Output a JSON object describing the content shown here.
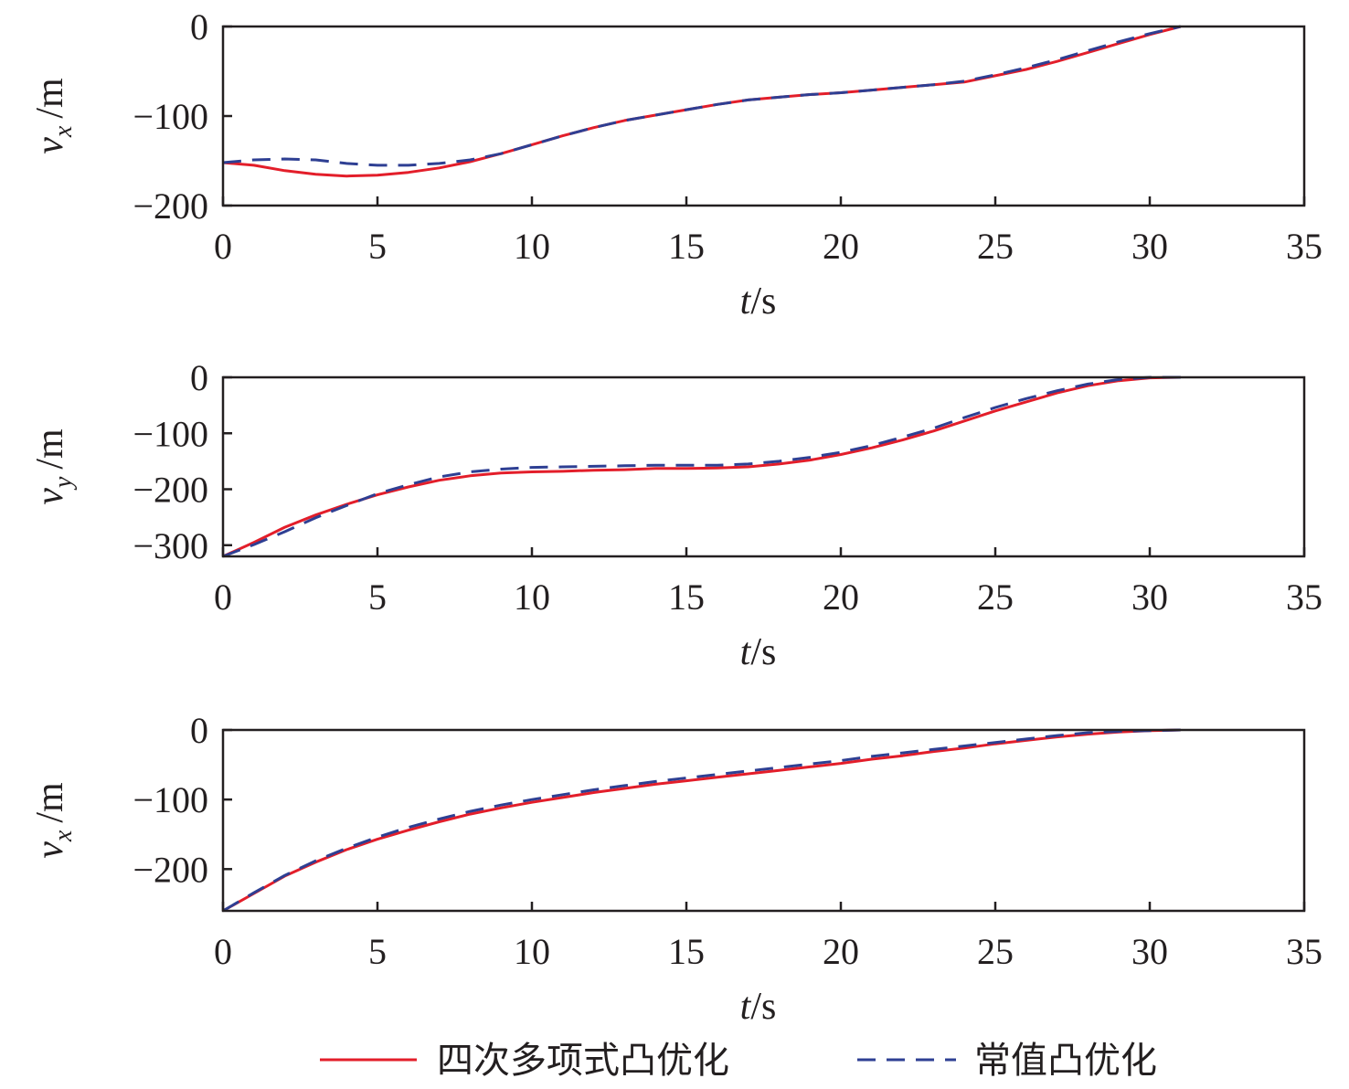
{
  "colors": {
    "series_solid": "#e31e2a",
    "series_dashed": "#2e3f93",
    "axis": "#231f20"
  },
  "legend": [
    {
      "name": "四次多项式凸优化",
      "style": "solid"
    },
    {
      "name": "常值凸优化",
      "style": "dashed"
    }
  ],
  "chart_data": [
    {
      "type": "line",
      "ylabel_var": "v",
      "ylabel_sub": "x",
      "ylabel_unit": "/m",
      "xlabel_var": "t",
      "xlabel_unit": "/s",
      "xlim": [
        0,
        35
      ],
      "ylim": [
        -200,
        0
      ],
      "xticks": [
        0,
        5,
        10,
        15,
        20,
        25,
        30,
        35
      ],
      "yticks": [
        0,
        -100,
        -200
      ],
      "ytick_labels": [
        "0",
        "−100",
        "−200"
      ],
      "grid": false,
      "series": [
        {
          "name": "四次多项式凸优化",
          "style": "solid",
          "x": [
            0,
            1,
            2,
            3,
            4,
            5,
            6,
            7,
            8,
            9,
            10,
            11,
            12,
            13,
            14,
            15,
            16,
            17,
            18,
            19,
            20,
            21,
            22,
            23,
            24,
            25,
            26,
            27,
            28,
            29,
            30,
            31
          ],
          "y": [
            -152,
            -155,
            -161,
            -165,
            -167,
            -166,
            -163,
            -158,
            -151,
            -142,
            -132,
            -122,
            -113,
            -105,
            -99,
            -93,
            -87,
            -82,
            -79,
            -76,
            -74,
            -71,
            -68,
            -65,
            -62,
            -55,
            -48,
            -39,
            -29,
            -19,
            -9,
            0
          ]
        },
        {
          "name": "常值凸优化",
          "style": "dashed",
          "x": [
            0,
            1,
            2,
            3,
            4,
            5,
            6,
            7,
            8,
            9,
            10,
            11,
            12,
            13,
            14,
            15,
            16,
            17,
            18,
            19,
            20,
            21,
            22,
            23,
            24,
            25,
            26,
            27,
            28,
            29,
            30,
            31
          ],
          "y": [
            -152,
            -149,
            -148,
            -149,
            -153,
            -155,
            -155,
            -153,
            -149,
            -142,
            -132,
            -122,
            -113,
            -105,
            -99,
            -93,
            -87,
            -82,
            -79,
            -76,
            -74,
            -71,
            -68,
            -65,
            -61,
            -54,
            -46,
            -37,
            -27,
            -17,
            -8,
            0
          ]
        }
      ]
    },
    {
      "type": "line",
      "ylabel_var": "v",
      "ylabel_sub": "y",
      "ylabel_unit": "/m",
      "xlabel_var": "t",
      "xlabel_unit": "/s",
      "xlim": [
        0,
        35
      ],
      "ylim": [
        -320,
        0
      ],
      "xticks": [
        0,
        5,
        10,
        15,
        20,
        25,
        30,
        35
      ],
      "yticks": [
        0,
        -100,
        -200,
        -300
      ],
      "ytick_labels": [
        "0",
        "−100",
        "−200",
        "−300"
      ],
      "grid": false,
      "series": [
        {
          "name": "四次多项式凸优化",
          "style": "solid",
          "x": [
            0,
            1,
            2,
            3,
            4,
            5,
            6,
            7,
            8,
            9,
            10,
            11,
            12,
            13,
            14,
            15,
            16,
            17,
            18,
            19,
            20,
            21,
            22,
            23,
            24,
            25,
            26,
            27,
            28,
            29,
            30,
            31
          ],
          "y": [
            -320,
            -295,
            -268,
            -246,
            -227,
            -210,
            -196,
            -184,
            -176,
            -171,
            -169,
            -168,
            -166,
            -165,
            -163,
            -163,
            -162,
            -160,
            -155,
            -148,
            -138,
            -126,
            -112,
            -96,
            -78,
            -60,
            -44,
            -28,
            -15,
            -6,
            -1,
            0
          ]
        },
        {
          "name": "常值凸优化",
          "style": "dashed",
          "x": [
            0,
            1,
            2,
            3,
            4,
            5,
            6,
            7,
            8,
            9,
            10,
            11,
            12,
            13,
            14,
            15,
            16,
            17,
            18,
            19,
            20,
            21,
            22,
            23,
            24,
            25,
            26,
            27,
            28,
            29,
            30,
            31
          ],
          "y": [
            -320,
            -299,
            -276,
            -251,
            -229,
            -208,
            -192,
            -178,
            -169,
            -164,
            -161,
            -160,
            -159,
            -158,
            -157,
            -157,
            -157,
            -155,
            -150,
            -143,
            -134,
            -122,
            -107,
            -91,
            -72,
            -54,
            -38,
            -24,
            -12,
            -4,
            0,
            0
          ]
        }
      ]
    },
    {
      "type": "line",
      "ylabel_var": "v",
      "ylabel_sub": "x",
      "ylabel_unit": "/m",
      "xlabel_var": "t",
      "xlabel_unit": "/s",
      "xlim": [
        0,
        35
      ],
      "ylim": [
        -260,
        0
      ],
      "xticks": [
        0,
        5,
        10,
        15,
        20,
        25,
        30,
        35
      ],
      "yticks": [
        0,
        -100,
        -200
      ],
      "ytick_labels": [
        "0",
        "−100",
        "−200"
      ],
      "grid": false,
      "series": [
        {
          "name": "四次多项式凸优化",
          "style": "solid",
          "x": [
            0,
            1,
            2,
            3,
            4,
            5,
            6,
            7,
            8,
            9,
            10,
            11,
            12,
            13,
            14,
            15,
            16,
            17,
            18,
            19,
            20,
            21,
            22,
            23,
            24,
            25,
            26,
            27,
            28,
            29,
            30,
            31
          ],
          "y": [
            -260,
            -235,
            -210,
            -190,
            -172,
            -157,
            -144,
            -132,
            -121,
            -112,
            -104,
            -97,
            -90,
            -84,
            -78,
            -73,
            -68,
            -63,
            -58,
            -53,
            -48,
            -42,
            -37,
            -31,
            -26,
            -20,
            -15,
            -10,
            -6,
            -3,
            -1,
            0
          ]
        },
        {
          "name": "常值凸优化",
          "style": "dashed",
          "x": [
            0,
            1,
            2,
            3,
            4,
            5,
            6,
            7,
            8,
            9,
            10,
            11,
            12,
            13,
            14,
            15,
            16,
            17,
            18,
            19,
            20,
            21,
            22,
            23,
            24,
            25,
            26,
            27,
            28,
            29,
            30,
            31
          ],
          "y": [
            -260,
            -234,
            -209,
            -188,
            -170,
            -154,
            -140,
            -128,
            -117,
            -108,
            -100,
            -93,
            -86,
            -80,
            -74,
            -69,
            -64,
            -59,
            -54,
            -49,
            -44,
            -38,
            -33,
            -28,
            -23,
            -18,
            -13,
            -8,
            -4,
            -2,
            -1,
            0
          ]
        }
      ]
    }
  ]
}
